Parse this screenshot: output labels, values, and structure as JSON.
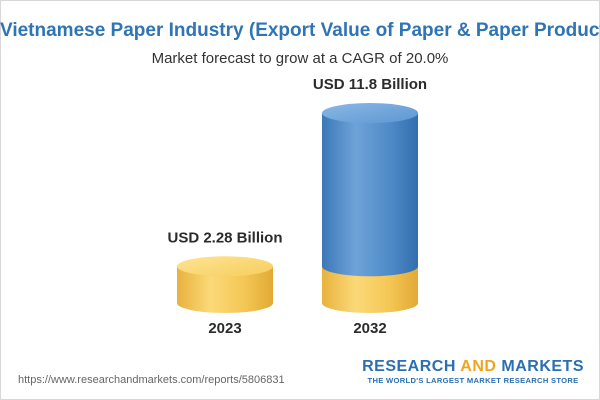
{
  "chart_data": {
    "type": "bar",
    "title": "Vietnamese Paper Industry (Export Value of Paper & Paper Products)",
    "subtitle": "Market forecast to grow at a CAGR of 20.0%",
    "categories": [
      "2023",
      "2032"
    ],
    "values": [
      2.28,
      11.8
    ],
    "value_labels": [
      "USD 2.28 Billion",
      "USD 11.8 Billion"
    ],
    "base_value": 2.28,
    "colors": {
      "base": "#f5c955",
      "growth": "#4a86c5",
      "title": "#2f74b5"
    }
  },
  "footer": {
    "url": "https://www.researchandmarkets.com/reports/5806831"
  },
  "brand": {
    "word1": "RESEARCH",
    "word2": "AND",
    "word3": "MARKETS",
    "tagline": "THE WORLD'S LARGEST MARKET RESEARCH STORE"
  }
}
